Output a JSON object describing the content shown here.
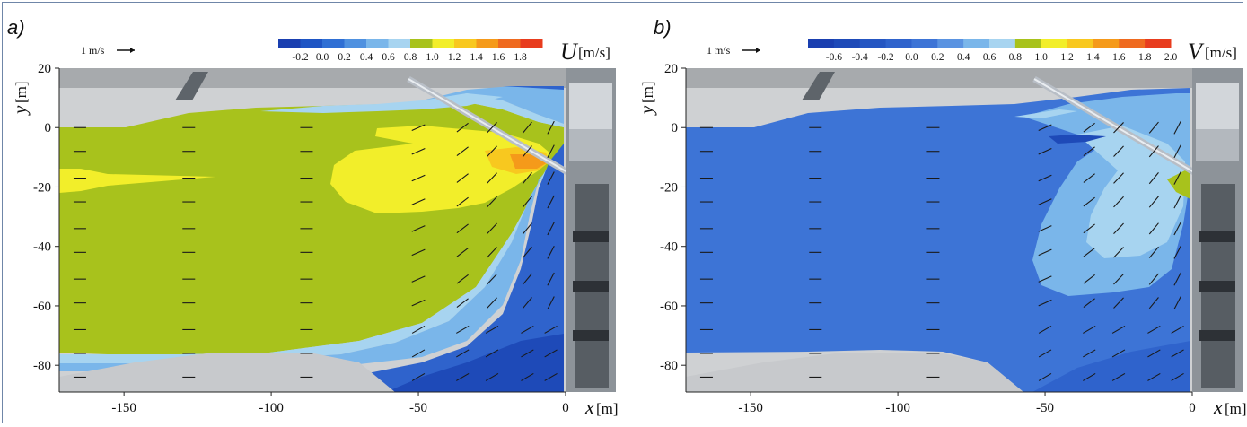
{
  "chart_data": [
    {
      "type": "heatmap",
      "panel_label": "a)",
      "variable": "U",
      "unit": "[m/s]",
      "xlabel": "x",
      "xunit": "[m]",
      "ylabel": "y",
      "yunit": "[m]",
      "xlim": [
        -172,
        0
      ],
      "ylim": [
        -89,
        20
      ],
      "x_ticks": [
        -150,
        -100,
        -50,
        0
      ],
      "y_ticks": [
        20,
        0,
        -20,
        -40,
        -60,
        -80
      ],
      "scale_arrow_label": "1 m/s",
      "scale_arrow_value": 1,
      "colorbar": {
        "ticks": [
          -0.2,
          0.0,
          0.2,
          0.4,
          0.6,
          0.8,
          1.0,
          1.2,
          1.4,
          1.6,
          1.8
        ],
        "colors": [
          "#1a3fb0",
          "#1e55c4",
          "#2f6fd4",
          "#4f91e0",
          "#7ab6ea",
          "#a7d4f0",
          "#a8c21c",
          "#f2ee2a",
          "#f8c81f",
          "#f59a1a",
          "#ef6a1f",
          "#e83c1e"
        ]
      },
      "vector_columns_x": [
        -165,
        -128,
        -88,
        -50,
        -35,
        -25,
        -13,
        -5
      ]
    },
    {
      "type": "heatmap",
      "panel_label": "b)",
      "variable": "V",
      "unit": "[m/s]",
      "xlabel": "x",
      "xunit": "[m]",
      "ylabel": "y",
      "yunit": "[m]",
      "xlim": [
        -172,
        0
      ],
      "ylim": [
        -89,
        20
      ],
      "x_ticks": [
        -150,
        -100,
        -50,
        0
      ],
      "y_ticks": [
        20,
        0,
        -20,
        -40,
        -60,
        -80
      ],
      "scale_arrow_label": "1 m/s",
      "scale_arrow_value": 1,
      "colorbar": {
        "ticks": [
          -0.6,
          -0.4,
          -0.2,
          0.0,
          0.2,
          0.4,
          0.6,
          0.8,
          1.0,
          1.2,
          1.4,
          1.6,
          1.8,
          2.0
        ],
        "colors": [
          "#1a3fb0",
          "#1e4ab8",
          "#2556c2",
          "#2f63cc",
          "#3d74d6",
          "#5a93e1",
          "#7ab6ea",
          "#a7d4f0",
          "#a8c21c",
          "#f2ee2a",
          "#f8c81f",
          "#f59a1a",
          "#ef6a1f",
          "#e83c1e"
        ]
      },
      "vector_columns_x": [
        -165,
        -128,
        -88,
        -50,
        -35,
        -25,
        -13,
        -5
      ]
    }
  ]
}
